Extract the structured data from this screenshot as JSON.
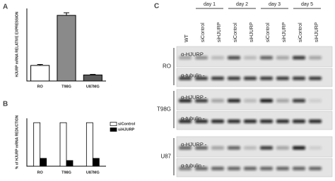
{
  "chart_data": [
    {
      "type": "bar",
      "panel_label": "A",
      "y_label": "HJURP mRNA RELATIVE EXPRESSION",
      "categories": [
        "RO",
        "T98G",
        "U87MG"
      ],
      "values": [
        0.9,
        3.8,
        0.35
      ],
      "errors": [
        0.06,
        0.15,
        0.03
      ],
      "colors": [
        "#ffffff",
        "#8a8a8a",
        "#5a5a5a"
      ],
      "ylim": [
        0,
        4.2
      ]
    },
    {
      "type": "grouped_bar",
      "panel_label": "B",
      "y_label": "% of HJURP mRNA REDUCTION",
      "categories": [
        "RO",
        "T98G",
        "U87MG"
      ],
      "series": [
        {
          "name": "siControl",
          "color": "#ffffff",
          "values": [
            1,
            1,
            1
          ]
        },
        {
          "name": "siHJURP",
          "color": "#000000",
          "values": [
            0.18,
            0.13,
            0.18
          ]
        }
      ],
      "ylim": [
        0,
        1.1
      ],
      "legend": "right"
    }
  ],
  "blot": {
    "panel_label": "C",
    "lanes": [
      "WT",
      "siControl",
      "siHJURP",
      "siControl",
      "siHJURP",
      "siControl",
      "siHJURP",
      "siControl",
      "siHJURP"
    ],
    "days": [
      "day 1",
      "day 2",
      "day 3",
      "day 5"
    ],
    "rows": [
      {
        "cell_line": "RO",
        "probes": [
          "α-HJURP",
          "α-tubulin -"
        ]
      },
      {
        "cell_line": "T98G",
        "probes": [
          "α-HJURP -",
          "α-tubulin -"
        ]
      },
      {
        "cell_line": "U87",
        "probes": [
          "α-HJURP -",
          "α-tubulin -"
        ]
      }
    ]
  }
}
